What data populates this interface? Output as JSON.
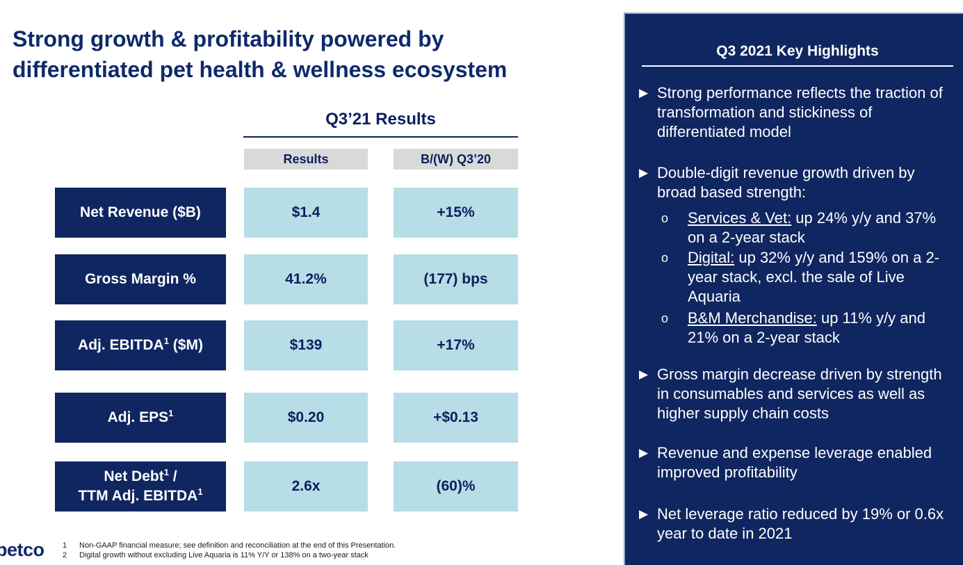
{
  "title": {
    "line1": "Strong growth & profitability powered by",
    "line2": "differentiated pet health & wellness ecosystem"
  },
  "results_table": {
    "heading": "Q3’21 Results",
    "columns": [
      "Results",
      "B/(W) Q3’20"
    ],
    "rows": [
      {
        "label": "Net Revenue ($B)",
        "result": "$1.4",
        "vs_prior": "+15%"
      },
      {
        "label": "Gross Margin %",
        "result": "41.2%",
        "vs_prior": "(177) bps"
      },
      {
        "label": "Adj. EBITDA",
        "label_sup": "1",
        "label_tail": " ($M)",
        "result": "$139",
        "vs_prior": "+17%"
      },
      {
        "label": "Adj. EPS",
        "label_sup": "1",
        "result": "$0.20",
        "vs_prior": "+$0.13"
      },
      {
        "label_line1": "Net Debt",
        "label_line1_sup": "1",
        "label_line1_tail": " /",
        "label_line2": "TTM Adj. EBITDA",
        "label_line2_sup": "1",
        "result": "2.6x",
        "vs_prior": "(60)%"
      }
    ]
  },
  "highlights": {
    "title": "Q3 2021 Key Highlights",
    "bullet_glyph": "▶",
    "sub_glyph": "o",
    "bullets": [
      {
        "text": "Strong performance reflects the traction of transformation and stickiness of differentiated model"
      },
      {
        "text": "Double-digit revenue growth driven by broad based strength:"
      },
      {
        "text": "Gross margin decrease driven by strength in consumables and services as well as higher supply chain costs"
      },
      {
        "text": "Revenue and expense leverage enabled improved profitability"
      },
      {
        "text": "Net leverage ratio reduced by 19% or 0.6x year to date in 2021"
      }
    ],
    "sub_bullets": [
      {
        "label": "Services & Vet:",
        "text": " up 24% y/y and 37% on a 2-year stack"
      },
      {
        "label": "Digital:",
        "text": " up 32% y/y and 159% on a 2-year stack, excl. the sale of Live Aquaria"
      },
      {
        "label": "B&M Merchandise:",
        "text": " up 11% y/y and 21% on a 2-year stack"
      }
    ]
  },
  "logo": "petco",
  "footnotes": [
    {
      "num": "1",
      "text": "Non-GAAP financial measure; see definition and reconciliation at the end of this Presentation."
    },
    {
      "num": "2",
      "text": "Digital growth without excluding Live Aquaria is 11% Y/Y or 138% on a two-year stack"
    }
  ],
  "colors": {
    "navy": "#0f2660",
    "light_blue": "#b7dde7",
    "header_gray": "#d9d9d9"
  }
}
